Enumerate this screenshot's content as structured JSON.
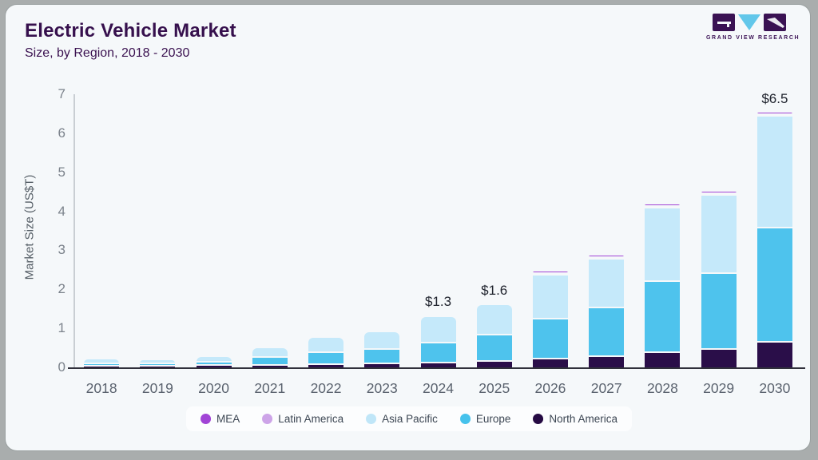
{
  "header": {
    "title": "Electric Vehicle Market",
    "subtitle": "Size, by Region, 2018 - 2030"
  },
  "logo": {
    "text": "GRAND VIEW RESEARCH",
    "purple": "#3a1253",
    "blue": "#62c7ea"
  },
  "chart_data": {
    "type": "bar",
    "stacked": true,
    "title": "Electric Vehicle Market Size, by Region, 2018 - 2030",
    "ylabel": "Market Size (US$T)",
    "xlabel": "",
    "ylim": [
      0,
      7
    ],
    "yticks": [
      0,
      1,
      2,
      3,
      4,
      5,
      6,
      7
    ],
    "grid": false,
    "legend_position": "bottom",
    "categories": [
      "2018",
      "2019",
      "2020",
      "2021",
      "2022",
      "2023",
      "2024",
      "2025",
      "2026",
      "2027",
      "2028",
      "2029",
      "2030"
    ],
    "series": [
      {
        "name": "North America",
        "color": "#2a0e49",
        "values": [
          0.05,
          0.05,
          0.06,
          0.07,
          0.08,
          0.1,
          0.12,
          0.16,
          0.22,
          0.28,
          0.38,
          0.48,
          0.65
        ]
      },
      {
        "name": "Europe",
        "color": "#4ec3ed",
        "values": [
          0.06,
          0.06,
          0.09,
          0.2,
          0.3,
          0.36,
          0.52,
          0.68,
          1.02,
          1.24,
          1.82,
          1.95,
          2.92
        ]
      },
      {
        "name": "Asia Pacific",
        "color": "#c5e9fa",
        "values": [
          0.1,
          0.08,
          0.13,
          0.23,
          0.37,
          0.44,
          0.66,
          0.76,
          1.13,
          1.25,
          1.88,
          2.01,
          2.86
        ]
      },
      {
        "name": "Latin America",
        "color": "#cda4e8",
        "values": [
          0,
          0,
          0,
          0,
          0,
          0,
          0,
          0,
          0.01,
          0.01,
          0.01,
          0.03,
          0.04
        ]
      },
      {
        "name": "MEA",
        "color": "#a144d6",
        "values": [
          0,
          0,
          0,
          0,
          0,
          0,
          0,
          0,
          0.01,
          0.01,
          0.01,
          0.03,
          0.03
        ]
      }
    ],
    "annotations": [
      {
        "category": "2024",
        "label": "$1.3"
      },
      {
        "category": "2025",
        "label": "$1.6"
      },
      {
        "category": "2030",
        "label": "$6.5"
      }
    ]
  },
  "legend": {
    "items": [
      {
        "label": "MEA",
        "color": "#a144d6"
      },
      {
        "label": "Latin America",
        "color": "#cda4e8"
      },
      {
        "label": "Asia Pacific",
        "color": "#c0e6f8"
      },
      {
        "label": "Europe",
        "color": "#46c2ec"
      },
      {
        "label": "North America",
        "color": "#250a43"
      }
    ]
  }
}
